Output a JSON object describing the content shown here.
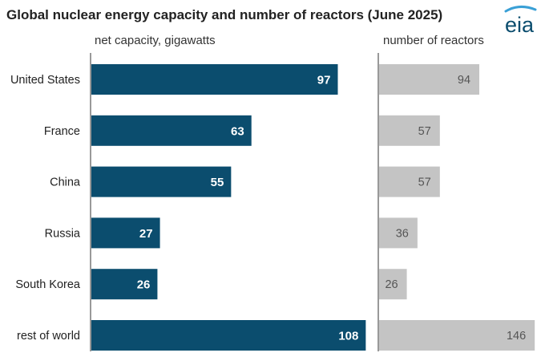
{
  "title": "Global nuclear energy capacity and number of reactors (June 2025)",
  "logo_text": "eia",
  "colors": {
    "capacity_bar": "#0b4d6e",
    "reactor_bar": "#c4c4c4",
    "logo": "#0b4d6e",
    "logo_swoosh": "#3aa0d6",
    "axis_line": "#333333"
  },
  "chart_data": [
    {
      "type": "bar",
      "orientation": "horizontal",
      "panel_label": "net capacity, gigawatts",
      "categories": [
        "United States",
        "France",
        "China",
        "Russia",
        "South Korea",
        "rest of world"
      ],
      "values": [
        97,
        63,
        55,
        27,
        26,
        108
      ],
      "xlim": [
        0,
        115
      ],
      "data_labels": [
        "97",
        "63",
        "55",
        "27",
        "26",
        "108"
      ],
      "grid": false
    },
    {
      "type": "bar",
      "orientation": "horizontal",
      "panel_label": "number of reactors",
      "categories": [
        "United States",
        "France",
        "China",
        "Russia",
        "South Korea",
        "rest of world"
      ],
      "values": [
        94,
        57,
        57,
        36,
        26,
        146
      ],
      "xlim": [
        0,
        150
      ],
      "data_labels": [
        "94",
        "57",
        "57",
        "36",
        "26",
        "146"
      ],
      "grid": false
    }
  ]
}
